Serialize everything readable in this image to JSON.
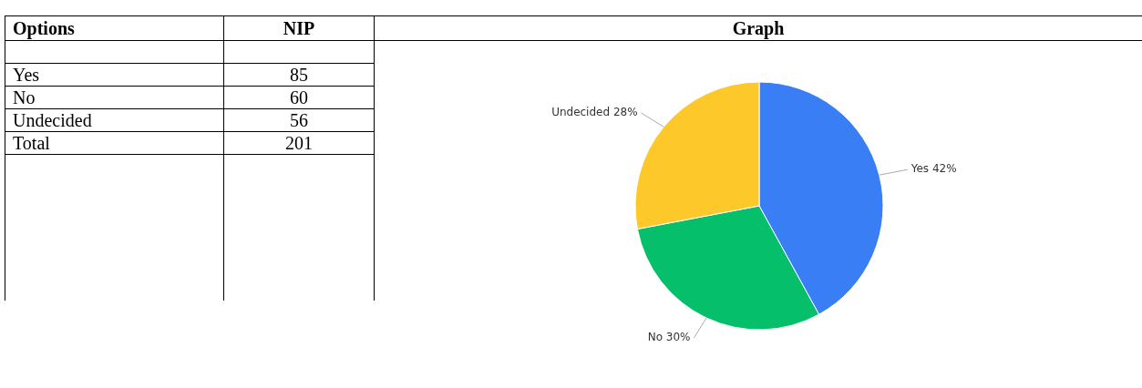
{
  "chart_data": {
    "type": "pie",
    "categories": [
      "Yes",
      "No",
      "Undecided"
    ],
    "values": [
      42,
      30,
      28
    ],
    "colors": [
      "#3a7ef6",
      "#06bf6a",
      "#fdc82a"
    ],
    "value_labels": [
      "42%",
      "30%",
      "28%"
    ],
    "annotations": [
      "Options",
      "NIP",
      "Graph",
      "Yes",
      "85",
      "No",
      "60",
      "Undecided",
      "56",
      "Total",
      "201"
    ],
    "legend": false
  }
}
